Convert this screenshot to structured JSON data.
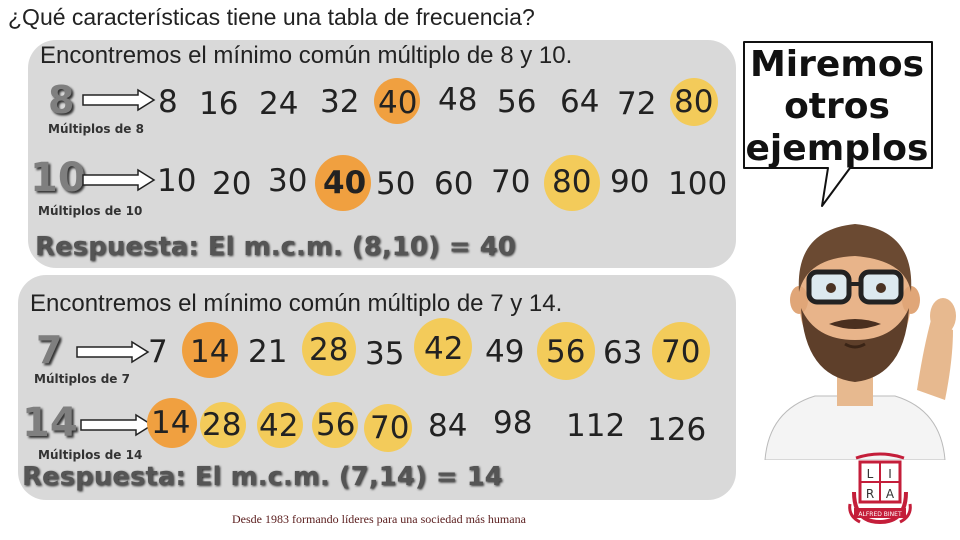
{
  "title": "¿Qué características tiene una tabla de frecuencia?",
  "example1": {
    "subtitle": "Encontremos el mínimo común múltiplo de 8 y 10.",
    "row1": {
      "label": "8",
      "caption": "Múltiplos de 8",
      "values": [
        "8",
        "16",
        "24",
        "32",
        "40",
        "48",
        "56",
        "64",
        "72",
        "80"
      ]
    },
    "row2": {
      "label": "10",
      "caption": "Múltiplos de 10",
      "values": [
        "10",
        "20",
        "30",
        "40",
        "50",
        "60",
        "70",
        "80",
        "90",
        "100"
      ]
    },
    "answer": "Respuesta: El m.c.m. (8,10) = 40"
  },
  "example2": {
    "subtitle": "Encontremos el mínimo común múltiplo de 7 y 14.",
    "row1": {
      "label": "7",
      "caption": "Múltiplos de 7",
      "values": [
        "7",
        "14",
        "21",
        "28",
        "35",
        "42",
        "49",
        "56",
        "63",
        "70"
      ]
    },
    "row2": {
      "label": "14",
      "caption": "Múltiplos de 14",
      "values": [
        "14",
        "28",
        "42",
        "56",
        "70",
        "84",
        "98",
        "112",
        "126"
      ]
    },
    "answer": "Respuesta: El m.c.m. (7,14) = 14"
  },
  "bubble": {
    "line1": "Miremos",
    "line2": "otros",
    "line3": "ejemplos"
  },
  "logo": {
    "letters": [
      "L",
      "I",
      "R",
      "A"
    ],
    "ribbon": "ALFRED BINET"
  },
  "footer": "Desde 1983 formando líderes para una sociedad más humana",
  "colors": {
    "orange": "#f0a040",
    "yellow": "#f3cb5a",
    "panel": "#d9d9d9",
    "logo": "#c41e3a"
  }
}
